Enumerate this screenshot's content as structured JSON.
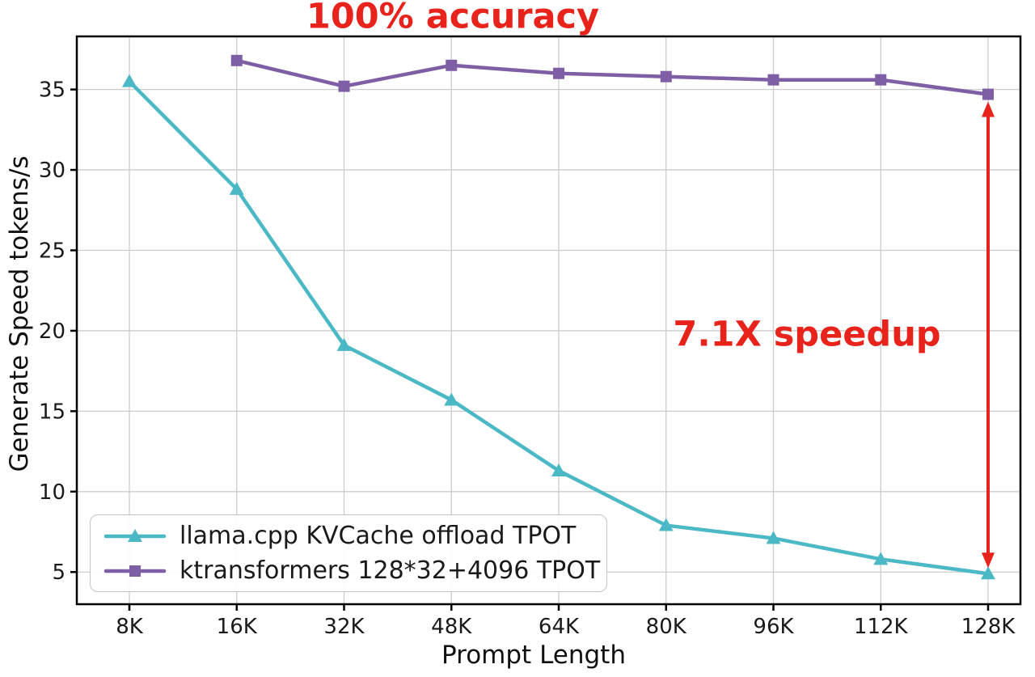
{
  "chart_data": {
    "type": "line",
    "xlabel": "Prompt Length",
    "ylabel": "Generate Speed tokens/s",
    "categories": [
      "8K",
      "16K",
      "32K",
      "48K",
      "64K",
      "80K",
      "96K",
      "112K",
      "128K"
    ],
    "yticks": [
      5,
      10,
      15,
      20,
      25,
      30,
      35
    ],
    "ylim": [
      3.0,
      38.3
    ],
    "grid": true,
    "grid_color": "#cccccc",
    "legend_position": "lower left",
    "series": [
      {
        "name": "llama.cpp KVCache offload TPOT",
        "color": "#4bb8c5",
        "marker": "triangle",
        "values": [
          35.5,
          28.8,
          19.1,
          15.7,
          11.3,
          7.9,
          7.1,
          5.8,
          4.9
        ]
      },
      {
        "name": "ktransformers 128*32+4096 TPOT",
        "color": "#7e5fa5",
        "marker": "square",
        "values": [
          null,
          36.8,
          35.2,
          36.5,
          36.0,
          35.8,
          35.6,
          35.6,
          34.7
        ]
      }
    ],
    "annotations": {
      "accuracy": {
        "text": "100% accuracy",
        "color": "#e8231c"
      },
      "speedup": {
        "text": "7.1X speedup",
        "color": "#e8231c"
      }
    }
  }
}
